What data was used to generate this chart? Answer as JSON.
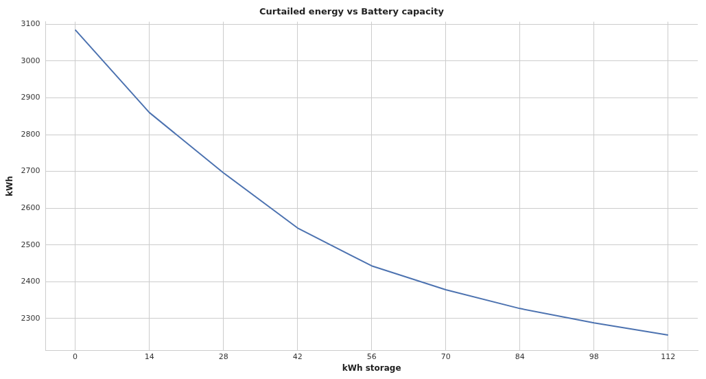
{
  "chart_data": {
    "type": "line",
    "title": "Curtailed energy vs Battery capacity",
    "xlabel": "kWh storage",
    "ylabel": "kWh",
    "x": [
      0,
      14,
      28,
      42,
      56,
      70,
      84,
      98,
      112
    ],
    "series": [
      {
        "color": "#4c72b0",
        "values": [
          3085,
          2860,
          2696,
          2546,
          2443,
          2378,
          2327,
          2288,
          2255
        ]
      }
    ],
    "xlim": [
      -5.6,
      117.6
    ],
    "xticks": [
      0,
      14,
      28,
      42,
      56,
      70,
      84,
      98,
      112
    ],
    "ylim": [
      2213,
      3107
    ],
    "yticks": [
      2300,
      2400,
      2500,
      2600,
      2700,
      2800,
      2900,
      3000,
      3100
    ],
    "grid": true,
    "legend": false,
    "marker": "none",
    "line_style": "solid"
  }
}
